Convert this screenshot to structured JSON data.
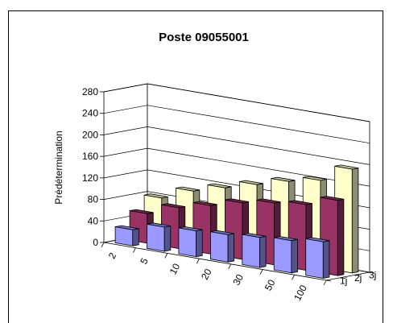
{
  "chart_data": {
    "type": "bar",
    "subtype": "3d-clustered-depth",
    "title": "Poste 09055001",
    "ylabel": "Prédétermination",
    "categories": [
      "2",
      "5",
      "10",
      "20",
      "30",
      "50",
      "100"
    ],
    "series": [
      {
        "name": "1j",
        "values": [
          30,
          45,
          48,
          51,
          56,
          60,
          68
        ],
        "color": "#9999FF"
      },
      {
        "name": "2j",
        "values": [
          55,
          76,
          90,
          105,
          115,
          122,
          140
        ],
        "color": "#993366"
      },
      {
        "name": "3j",
        "values": [
          79,
          102,
          118,
          134,
          150,
          162,
          193
        ],
        "color": "#FFFFCC"
      }
    ],
    "ylim": [
      0,
      280
    ],
    "yticks": [
      0,
      40,
      80,
      120,
      160,
      200,
      240,
      280
    ],
    "grid": true,
    "legend": "none"
  }
}
